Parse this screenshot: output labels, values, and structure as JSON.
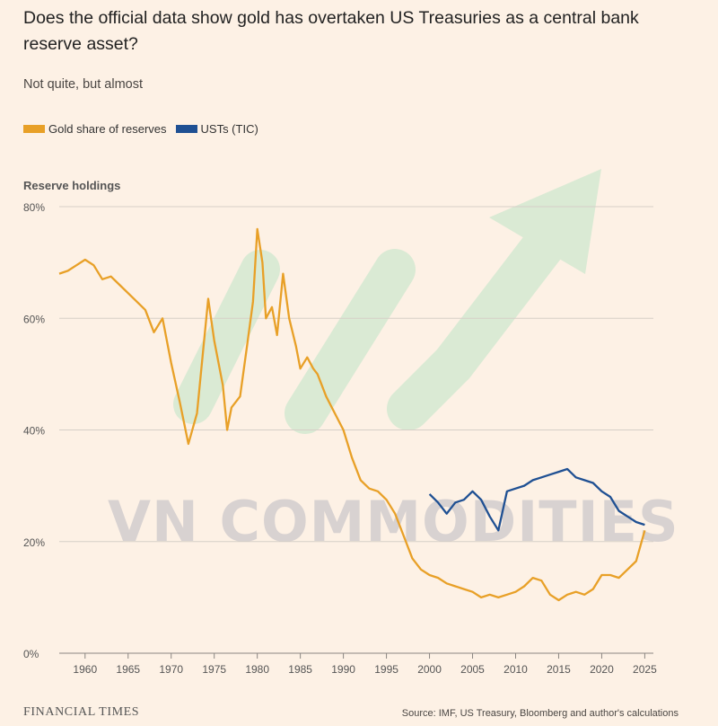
{
  "title": "Does the official data show gold has overtaken US Treasuries as a central bank reserve asset?",
  "subtitle": "Not quite, but almost",
  "footer": {
    "brand": "FINANCIAL TIMES",
    "source": "Source: IMF, US Treasury, Bloomberg and author's calculations"
  },
  "watermark": {
    "text": "VN COMMODITIES",
    "icon": "upward-trend-arrow-icon",
    "color": "#cfe8cf"
  },
  "chart_data": {
    "type": "line",
    "ylabel": "Reserve holdings",
    "ylim": [
      0,
      80
    ],
    "xlim": [
      1957,
      2026
    ],
    "yticks": [
      0,
      20,
      40,
      60,
      80
    ],
    "ytick_labels": [
      "0%",
      "20%",
      "40%",
      "60%",
      "80%"
    ],
    "xticks": [
      1960,
      1965,
      1970,
      1975,
      1980,
      1985,
      1990,
      1995,
      2000,
      2005,
      2010,
      2015,
      2020,
      2025
    ],
    "xtick_labels": [
      "1960",
      "1965",
      "1970",
      "1975",
      "1980",
      "1985",
      "1990",
      "1995",
      "2000",
      "2005",
      "2010",
      "2015",
      "2020",
      "2025"
    ],
    "grid": true,
    "legend_position": "top-left",
    "series": [
      {
        "name": "Gold share of reserves",
        "color": "#e8a027",
        "points": [
          [
            1957,
            68
          ],
          [
            1958,
            68.5
          ],
          [
            1959,
            69.5
          ],
          [
            1960,
            70.5
          ],
          [
            1961,
            69.5
          ],
          [
            1962,
            67
          ],
          [
            1963,
            67.5
          ],
          [
            1964,
            66
          ],
          [
            1965,
            64.5
          ],
          [
            1966,
            63
          ],
          [
            1967,
            61.5
          ],
          [
            1968,
            57.5
          ],
          [
            1969,
            60
          ],
          [
            1970,
            52
          ],
          [
            1971,
            45
          ],
          [
            1972,
            37.5
          ],
          [
            1973,
            43
          ],
          [
            1973.7,
            54
          ],
          [
            1974.3,
            63.5
          ],
          [
            1975,
            56
          ],
          [
            1976,
            48
          ],
          [
            1976.5,
            40
          ],
          [
            1977,
            44
          ],
          [
            1978,
            46
          ],
          [
            1978.8,
            55
          ],
          [
            1979.5,
            63
          ],
          [
            1980,
            76
          ],
          [
            1980.6,
            70
          ],
          [
            1981,
            60
          ],
          [
            1981.7,
            62
          ],
          [
            1982.3,
            57
          ],
          [
            1983,
            68
          ],
          [
            1983.7,
            60
          ],
          [
            1984.5,
            55
          ],
          [
            1985,
            51
          ],
          [
            1985.8,
            53
          ],
          [
            1986.5,
            51
          ],
          [
            1987,
            50
          ],
          [
            1988,
            46
          ],
          [
            1989,
            43
          ],
          [
            1990,
            40
          ],
          [
            1991,
            35
          ],
          [
            1992,
            31
          ],
          [
            1993,
            29.5
          ],
          [
            1994,
            29
          ],
          [
            1995,
            27.5
          ],
          [
            1996,
            25
          ],
          [
            1997,
            21
          ],
          [
            1998,
            17
          ],
          [
            1999,
            15
          ],
          [
            2000,
            14
          ],
          [
            2001,
            13.5
          ],
          [
            2002,
            12.5
          ],
          [
            2003,
            12
          ],
          [
            2004,
            11.5
          ],
          [
            2005,
            11
          ],
          [
            2006,
            10
          ],
          [
            2007,
            10.5
          ],
          [
            2008,
            10
          ],
          [
            2009,
            10.5
          ],
          [
            2010,
            11
          ],
          [
            2011,
            12
          ],
          [
            2012,
            13.5
          ],
          [
            2013,
            13
          ],
          [
            2014,
            10.5
          ],
          [
            2015,
            9.5
          ],
          [
            2016,
            10.5
          ],
          [
            2017,
            11
          ],
          [
            2018,
            10.5
          ],
          [
            2019,
            11.5
          ],
          [
            2020,
            14
          ],
          [
            2021,
            14
          ],
          [
            2022,
            13.5
          ],
          [
            2023,
            15
          ],
          [
            2024,
            16.5
          ],
          [
            2025,
            22
          ]
        ]
      },
      {
        "name": "USTs (TIC)",
        "color": "#1f5093",
        "points": [
          [
            2000,
            28.5
          ],
          [
            2001,
            27
          ],
          [
            2002,
            25
          ],
          [
            2003,
            27
          ],
          [
            2004,
            27.5
          ],
          [
            2005,
            29
          ],
          [
            2006,
            27.5
          ],
          [
            2007,
            24.5
          ],
          [
            2008,
            22
          ],
          [
            2009,
            29
          ],
          [
            2010,
            29.5
          ],
          [
            2011,
            30
          ],
          [
            2012,
            31
          ],
          [
            2013,
            31.5
          ],
          [
            2014,
            32
          ],
          [
            2015,
            32.5
          ],
          [
            2016,
            33
          ],
          [
            2017,
            31.5
          ],
          [
            2018,
            31
          ],
          [
            2019,
            30.5
          ],
          [
            2020,
            29
          ],
          [
            2021,
            28
          ],
          [
            2022,
            25.5
          ],
          [
            2023,
            24.5
          ],
          [
            2024,
            23.5
          ],
          [
            2025,
            23
          ]
        ]
      }
    ]
  }
}
